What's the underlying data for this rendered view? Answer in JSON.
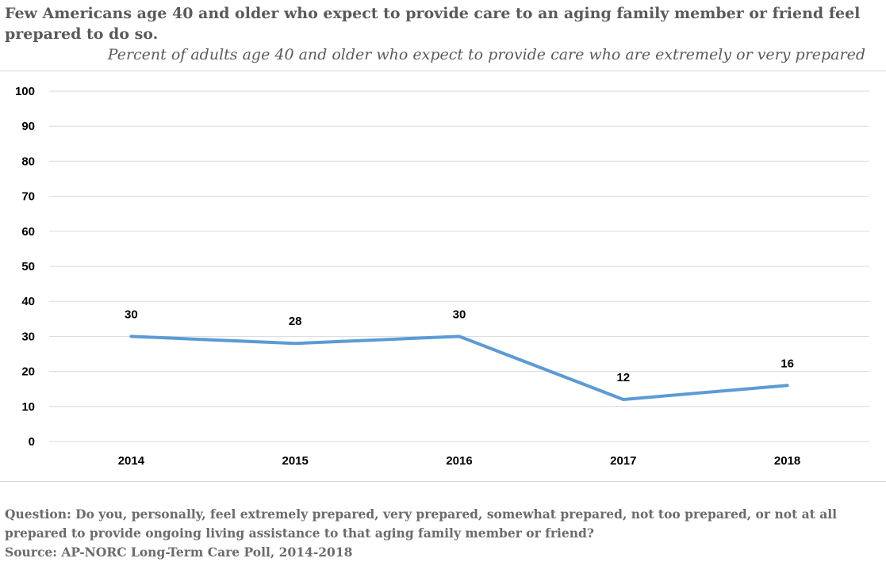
{
  "chart_data": {
    "type": "line",
    "title": "Few Americans age 40 and older who expect to provide care to an aging family member or friend feel prepared to do so.",
    "subtitle": "Percent of adults age 40 and older who expect to provide care who are extremely or very prepared",
    "categories": [
      "2014",
      "2015",
      "2016",
      "2017",
      "2018"
    ],
    "series": [
      {
        "values": [
          30,
          28,
          30,
          12,
          16
        ],
        "color": "#5b9bd5"
      }
    ],
    "y_ticks": [
      "0",
      "10",
      "20",
      "30",
      "40",
      "50",
      "60",
      "70",
      "80",
      "90",
      "100"
    ],
    "ylim": [
      0,
      100
    ],
    "grid": true,
    "legend": "none",
    "xlabel": "",
    "ylabel": ""
  },
  "footer": {
    "question": "Question: Do you, personally, feel extremely prepared, very prepared, somewhat prepared, not too prepared, or not at all prepared to provide ongoing living assistance to that aging family member or friend?",
    "source": "Source: AP-NORC Long-Term Care Poll, 2014-2018"
  },
  "colors": {
    "line": "#5b9bd5",
    "grid": "#d9d9d9",
    "title_text": "#5a5a5a",
    "footer_text": "#6b6b6b"
  }
}
